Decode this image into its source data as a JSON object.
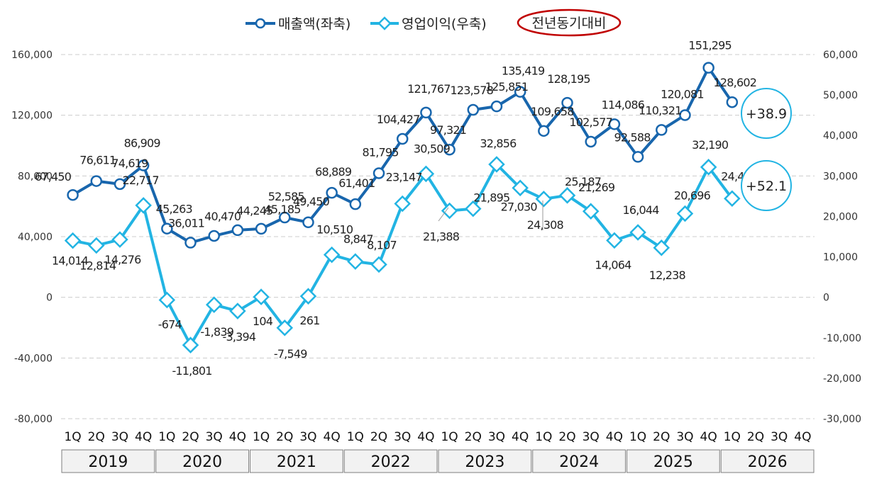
{
  "chart_data": {
    "type": "line",
    "title": "",
    "legend": {
      "position": "top-center",
      "entries": [
        {
          "key": "revenue",
          "label": "매출액(좌축)",
          "color": "#1866ad",
          "marker": "circle"
        },
        {
          "key": "op",
          "label": "영업이익(우축)",
          "color": "#22b4e3",
          "marker": "diamond"
        },
        {
          "key": "yoy",
          "label": "전년동기대비",
          "color": "#c00000",
          "marker": "ellipse"
        }
      ]
    },
    "quarters": [
      "1Q",
      "2Q",
      "3Q",
      "4Q"
    ],
    "years": [
      "2019",
      "2020",
      "2021",
      "2022",
      "2023",
      "2024",
      "2025",
      "2026"
    ],
    "y_left": {
      "min": -80000,
      "max": 160000,
      "ticks": [
        "160,000",
        "120,000",
        "80,000",
        "40,000",
        "0",
        "-40,000",
        "-80,000"
      ]
    },
    "y_right": {
      "min": -30000,
      "max": 60000,
      "ticks": [
        "60,000",
        "50,000",
        "40,000",
        "30,000",
        "20,000",
        "10,000",
        "0",
        "-10,000",
        "-20,000",
        "-30,000"
      ]
    },
    "grid": "horizontal-dashed",
    "series": [
      {
        "name": "매출액(좌축)",
        "axis": "left",
        "values": [
          67450,
          76611,
          74619,
          86909,
          45263,
          36011,
          40470,
          44245,
          45185,
          52585,
          49450,
          68889,
          61401,
          81795,
          104427,
          121767,
          97321,
          123578,
          125851,
          135419,
          109658,
          128195,
          102577,
          114086,
          92588,
          110321,
          120081,
          151295,
          128602
        ],
        "labels": [
          "67,450",
          "76,611",
          "74,619",
          "86,909",
          "45,263",
          "36,011",
          "40,470",
          "44,245",
          "45,185",
          "52,585",
          "49,450",
          "68,889",
          "61,401",
          "81,795",
          "104,427",
          "121,767",
          "97,321",
          "123,578",
          "125,851",
          "135,419",
          "109,658",
          "128,195",
          "102,577",
          "114,086",
          "92,588",
          "110,321",
          "120,081",
          "151,295",
          "128,602"
        ]
      },
      {
        "name": "영업이익(우축)",
        "axis": "right",
        "values": [
          14014,
          12814,
          14276,
          22717,
          -674,
          -11801,
          -1839,
          -3394,
          104,
          -7549,
          261,
          10510,
          8847,
          8107,
          23147,
          30509,
          21388,
          21895,
          32856,
          27030,
          24308,
          25187,
          21269,
          14064,
          16044,
          12238,
          20696,
          32190,
          24407
        ],
        "labels": [
          "14,014",
          "12,814",
          "14,276",
          "22,717",
          "-674",
          "-11,801",
          "-1,839",
          "-3,394",
          "104",
          "-7,549",
          "261",
          "10,510",
          "8,847",
          "8,107",
          "23,147",
          "30,509",
          "21,388",
          "21,895",
          "32,856",
          "27,030",
          "24,308",
          "25,187",
          "21,269",
          "14,064",
          "16,044",
          "12,238",
          "20,696",
          "32,190",
          "24,407"
        ]
      }
    ],
    "yoy_badges": [
      {
        "series": "매출액(좌축)",
        "text": "+38.9"
      },
      {
        "series": "영업이익(우축)",
        "text": "+52.1"
      }
    ]
  }
}
